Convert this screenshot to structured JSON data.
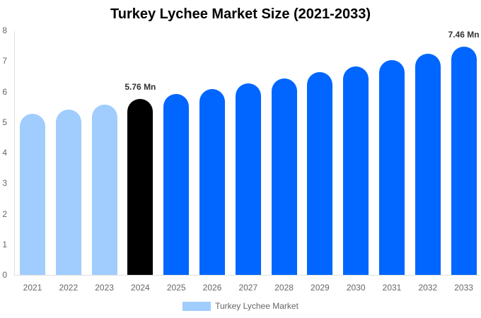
{
  "title": "Turkey Lychee Market Size (2021-2033)",
  "legend": {
    "label": "Turkey Lychee Market",
    "color": "#a0cdfd"
  },
  "y_ticks": [
    "0",
    "1",
    "2",
    "3",
    "4",
    "5",
    "6",
    "7",
    "8"
  ],
  "colors": {
    "historical": "#a0cdfd",
    "current": "#000000",
    "forecast": "#0066ff"
  },
  "chart_data": {
    "type": "bar",
    "title": "Turkey Lychee Market Size (2021-2033)",
    "xlabel": "",
    "ylabel": "",
    "ylim": [
      0,
      8
    ],
    "grid": false,
    "legend_position": "bottom",
    "categories": [
      "2021",
      "2022",
      "2023",
      "2024",
      "2025",
      "2026",
      "2027",
      "2028",
      "2029",
      "2030",
      "2031",
      "2032",
      "2033"
    ],
    "series": [
      {
        "name": "Turkey Lychee Market",
        "values": [
          5.27,
          5.42,
          5.58,
          5.76,
          5.92,
          6.08,
          6.27,
          6.43,
          6.64,
          6.82,
          7.03,
          7.24,
          7.46
        ]
      }
    ],
    "annotations": [
      {
        "category": "2024",
        "text": "5.76 Mn"
      },
      {
        "category": "2033",
        "text": "7.46 Mn"
      }
    ],
    "bar_colors": [
      "#a0cdfd",
      "#a0cdfd",
      "#a0cdfd",
      "#000000",
      "#0066ff",
      "#0066ff",
      "#0066ff",
      "#0066ff",
      "#0066ff",
      "#0066ff",
      "#0066ff",
      "#0066ff",
      "#0066ff"
    ]
  }
}
